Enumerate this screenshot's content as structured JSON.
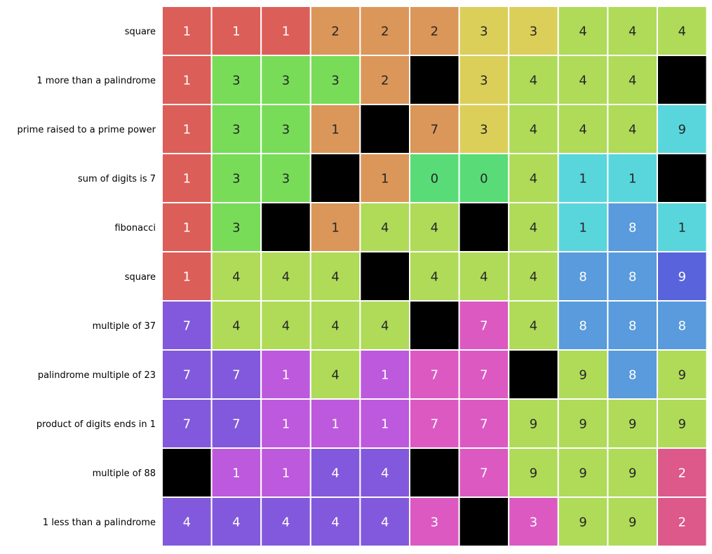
{
  "chart_data": {
    "type": "heatmap",
    "title": "",
    "xlabel": "",
    "ylabel": "",
    "grid": false,
    "legend": "none",
    "row_labels": [
      "square",
      "1 more than a palindrome",
      "prime raised to a prime power",
      "sum of digits is 7",
      "fibonacci",
      "square",
      "multiple of 37",
      "palindrome multiple of 23",
      "product of digits ends in 1",
      "multiple of 88",
      "1 less than a palindrome"
    ],
    "cells": [
      [
        {
          "v": "1",
          "r": "r1"
        },
        {
          "v": "1",
          "r": "r1"
        },
        {
          "v": "1",
          "r": "r1"
        },
        {
          "v": "2",
          "r": "r2"
        },
        {
          "v": "2",
          "r": "r2"
        },
        {
          "v": "2",
          "r": "r2"
        },
        {
          "v": "3",
          "r": "r3"
        },
        {
          "v": "3",
          "r": "r3"
        },
        {
          "v": "4",
          "r": "r4"
        },
        {
          "v": "4",
          "r": "r4"
        },
        {
          "v": "4",
          "r": "r4"
        }
      ],
      [
        {
          "v": "1",
          "r": "r1"
        },
        {
          "v": "3",
          "r": "r5"
        },
        {
          "v": "3",
          "r": "r5"
        },
        {
          "v": "3",
          "r": "r5"
        },
        {
          "v": "2",
          "r": "r2"
        },
        {
          "v": "",
          "r": "blk"
        },
        {
          "v": "3",
          "r": "r3"
        },
        {
          "v": "4",
          "r": "r4"
        },
        {
          "v": "4",
          "r": "r4"
        },
        {
          "v": "4",
          "r": "r4"
        },
        {
          "v": "",
          "r": "blk"
        }
      ],
      [
        {
          "v": "1",
          "r": "r1"
        },
        {
          "v": "3",
          "r": "r5"
        },
        {
          "v": "3",
          "r": "r5"
        },
        {
          "v": "1",
          "r": "r2"
        },
        {
          "v": "",
          "r": "blk"
        },
        {
          "v": "7",
          "r": "r2"
        },
        {
          "v": "3",
          "r": "r3"
        },
        {
          "v": "4",
          "r": "r4"
        },
        {
          "v": "4",
          "r": "r4"
        },
        {
          "v": "4",
          "r": "r4"
        },
        {
          "v": "9",
          "r": "r7"
        }
      ],
      [
        {
          "v": "1",
          "r": "r1"
        },
        {
          "v": "3",
          "r": "r5"
        },
        {
          "v": "3",
          "r": "r5"
        },
        {
          "v": "",
          "r": "blk"
        },
        {
          "v": "1",
          "r": "r2"
        },
        {
          "v": "0",
          "r": "r6"
        },
        {
          "v": "0",
          "r": "r6"
        },
        {
          "v": "4",
          "r": "r4"
        },
        {
          "v": "1",
          "r": "r7"
        },
        {
          "v": "1",
          "r": "r7"
        },
        {
          "v": "",
          "r": "blk"
        }
      ],
      [
        {
          "v": "1",
          "r": "r1"
        },
        {
          "v": "3",
          "r": "r5"
        },
        {
          "v": "",
          "r": "blk"
        },
        {
          "v": "1",
          "r": "r2"
        },
        {
          "v": "4",
          "r": "r4"
        },
        {
          "v": "4",
          "r": "r4"
        },
        {
          "v": "",
          "r": "blk"
        },
        {
          "v": "4",
          "r": "r4"
        },
        {
          "v": "1",
          "r": "r7"
        },
        {
          "v": "8",
          "r": "r8"
        },
        {
          "v": "1",
          "r": "r7"
        }
      ],
      [
        {
          "v": "1",
          "r": "r1"
        },
        {
          "v": "4",
          "r": "r4"
        },
        {
          "v": "4",
          "r": "r4"
        },
        {
          "v": "4",
          "r": "r4"
        },
        {
          "v": "",
          "r": "blk"
        },
        {
          "v": "4",
          "r": "r4"
        },
        {
          "v": "4",
          "r": "r4"
        },
        {
          "v": "4",
          "r": "r4"
        },
        {
          "v": "8",
          "r": "r8"
        },
        {
          "v": "8",
          "r": "r8"
        },
        {
          "v": "9",
          "r": "r9"
        }
      ],
      [
        {
          "v": "7",
          "r": "r10"
        },
        {
          "v": "4",
          "r": "r4"
        },
        {
          "v": "4",
          "r": "r4"
        },
        {
          "v": "4",
          "r": "r4"
        },
        {
          "v": "4",
          "r": "r4"
        },
        {
          "v": "",
          "r": "blk"
        },
        {
          "v": "7",
          "r": "r12"
        },
        {
          "v": "4",
          "r": "r4"
        },
        {
          "v": "8",
          "r": "r8"
        },
        {
          "v": "8",
          "r": "r8"
        },
        {
          "v": "8",
          "r": "r8"
        }
      ],
      [
        {
          "v": "7",
          "r": "r10"
        },
        {
          "v": "7",
          "r": "r10"
        },
        {
          "v": "1",
          "r": "r11"
        },
        {
          "v": "4",
          "r": "r4"
        },
        {
          "v": "1",
          "r": "r11"
        },
        {
          "v": "7",
          "r": "r12"
        },
        {
          "v": "7",
          "r": "r12"
        },
        {
          "v": "",
          "r": "blk"
        },
        {
          "v": "9",
          "r": "r4"
        },
        {
          "v": "8",
          "r": "r8"
        },
        {
          "v": "9",
          "r": "r4"
        }
      ],
      [
        {
          "v": "7",
          "r": "r10"
        },
        {
          "v": "7",
          "r": "r10"
        },
        {
          "v": "1",
          "r": "r11"
        },
        {
          "v": "1",
          "r": "r11"
        },
        {
          "v": "1",
          "r": "r11"
        },
        {
          "v": "7",
          "r": "r12"
        },
        {
          "v": "7",
          "r": "r12"
        },
        {
          "v": "9",
          "r": "r4"
        },
        {
          "v": "9",
          "r": "r4"
        },
        {
          "v": "9",
          "r": "r4"
        },
        {
          "v": "9",
          "r": "r4"
        }
      ],
      [
        {
          "v": "",
          "r": "blk"
        },
        {
          "v": "1",
          "r": "r11"
        },
        {
          "v": "1",
          "r": "r11"
        },
        {
          "v": "4",
          "r": "r10"
        },
        {
          "v": "4",
          "r": "r10"
        },
        {
          "v": "",
          "r": "blk"
        },
        {
          "v": "7",
          "r": "r12"
        },
        {
          "v": "9",
          "r": "r4"
        },
        {
          "v": "9",
          "r": "r4"
        },
        {
          "v": "9",
          "r": "r4"
        },
        {
          "v": "2",
          "r": "r13"
        }
      ],
      [
        {
          "v": "4",
          "r": "r10"
        },
        {
          "v": "4",
          "r": "r10"
        },
        {
          "v": "4",
          "r": "r10"
        },
        {
          "v": "4",
          "r": "r10"
        },
        {
          "v": "4",
          "r": "r10"
        },
        {
          "v": "3",
          "r": "r12"
        },
        {
          "v": "",
          "r": "blk"
        },
        {
          "v": "3",
          "r": "r12"
        },
        {
          "v": "9",
          "r": "r4"
        },
        {
          "v": "9",
          "r": "r4"
        },
        {
          "v": "2",
          "r": "r13"
        }
      ]
    ],
    "region_colors": {
      "r1": "#dc5e59",
      "r2": "#db9659",
      "r3": "#dbcf59",
      "r4": "#afdb59",
      "r5": "#78dc59",
      "r6": "#59dc78",
      "r7": "#59d6dc",
      "r8": "#599bdc",
      "r9": "#5963dc",
      "r10": "#8259dc",
      "r11": "#bd59dc",
      "r12": "#dc59c2",
      "r13": "#dc598a",
      "blk": "#000000"
    },
    "dark_text_regions": [
      "r2",
      "r3",
      "r4",
      "r5",
      "r6",
      "r7"
    ],
    "text_colors": {
      "light": "#ffffff",
      "dark": "#262626"
    }
  }
}
